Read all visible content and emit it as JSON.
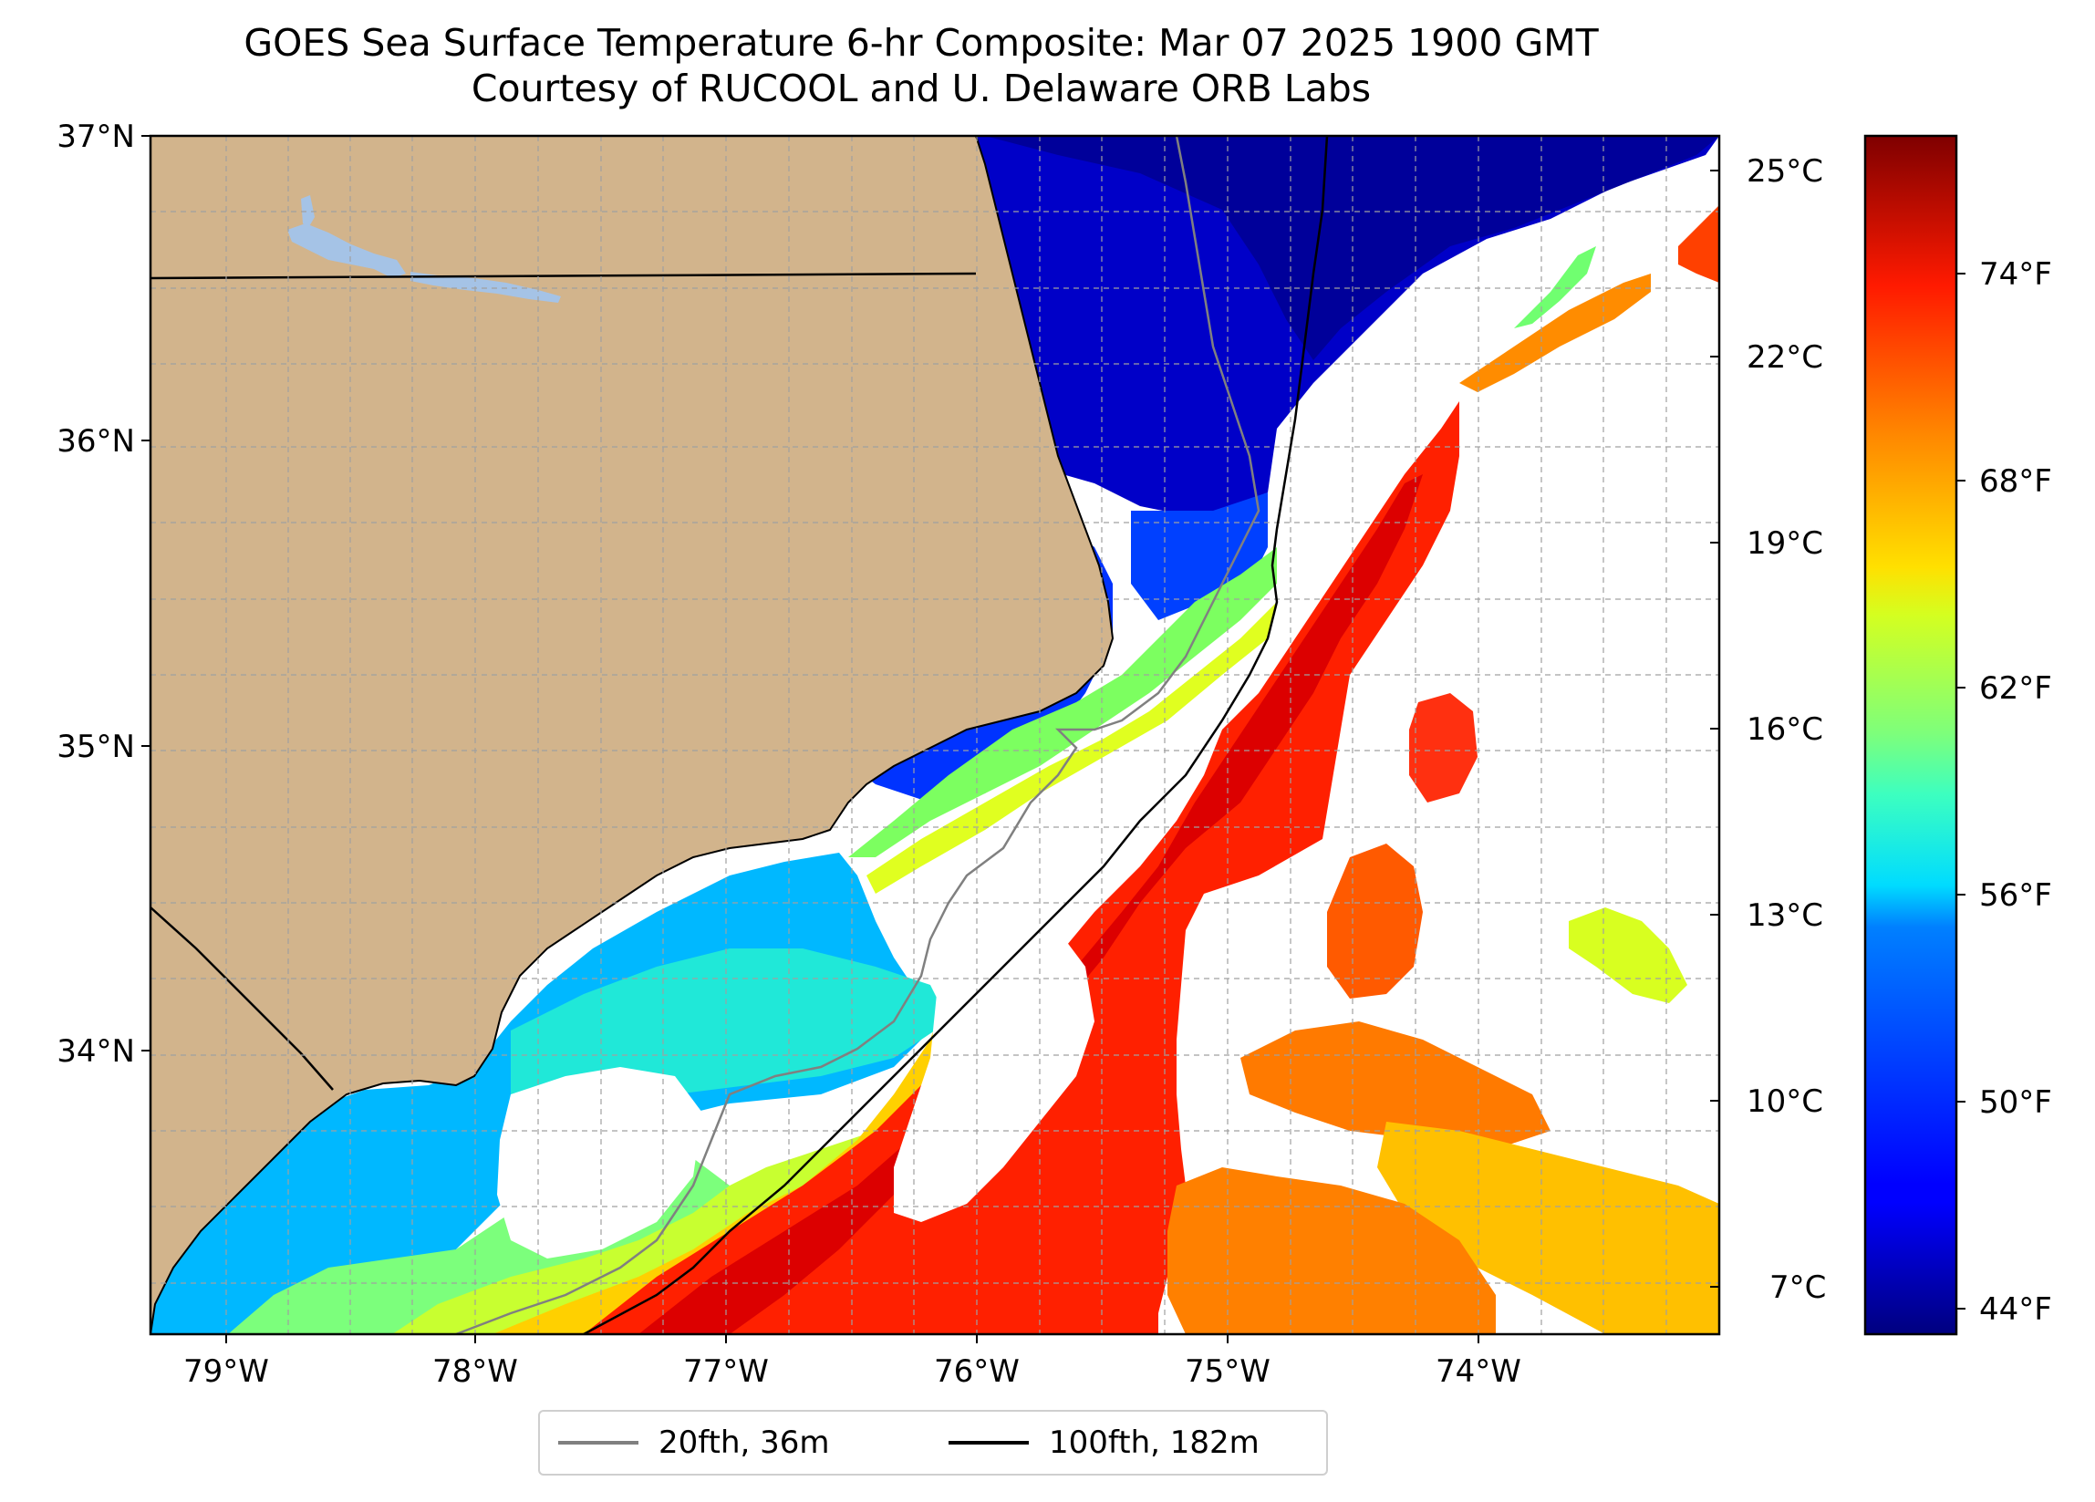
{
  "title": {
    "line1": "GOES Sea Surface Temperature 6-hr Composite: Mar 07 2025 1900 GMT",
    "line2": "Courtesy of RUCOOL and U. Delaware ORB Labs"
  },
  "map": {
    "lat_labels": [
      "37°N",
      "36°N",
      "35°N",
      "34°N"
    ],
    "lon_labels": [
      "79°W",
      "78°W",
      "77°W",
      "76°W",
      "75°W",
      "74°W"
    ],
    "extent": {
      "lon_min": -79.3,
      "lon_max": -73.05,
      "lat_min": 33.08,
      "lat_max": 37.0
    },
    "colors": {
      "land": "#d2b48c",
      "no_data": "#ffffff",
      "lakes": "#a5c3e6",
      "coast": "#000000",
      "isobath_20fth": "#808080",
      "isobath_100fth": "#000000",
      "grid": "#a0a0a0"
    }
  },
  "colorbar": {
    "colormap": "jet",
    "celsius_labels": [
      "25°C",
      "22°C",
      "19°C",
      "16°C",
      "13°C",
      "10°C",
      "7°C"
    ],
    "fahrenheit_labels": [
      "74°F",
      "68°F",
      "62°F",
      "56°F",
      "50°F",
      "44°F"
    ]
  },
  "legend": {
    "items": [
      {
        "label": "20fth, 36m",
        "color": "#808080"
      },
      {
        "label": "100fth, 182m",
        "color": "#000000"
      }
    ]
  }
}
